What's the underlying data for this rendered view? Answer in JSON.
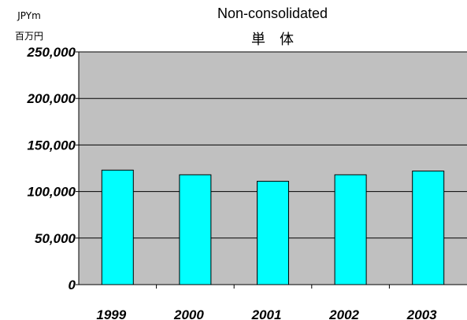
{
  "chart_data": {
    "type": "bar",
    "title": "Non-consolidated",
    "subtitle": "単　体",
    "unit_lines": [
      "JPYm",
      "百万円"
    ],
    "categories": [
      "1999",
      "2000",
      "2001",
      "2002",
      "2003"
    ],
    "values": [
      123000,
      118000,
      111000,
      118000,
      122000
    ],
    "ylim": [
      0,
      250000
    ],
    "yticks": [
      0,
      50000,
      100000,
      150000,
      200000,
      250000
    ],
    "ytick_labels": [
      "0",
      "50,000",
      "100,000",
      "150,000",
      "200,000",
      "250,000"
    ],
    "grid": true,
    "colors": {
      "plot_background": "#c0c0c0",
      "bar_fill": "#00ffff",
      "bar_stroke": "#000000",
      "gridline": "#000000"
    }
  }
}
